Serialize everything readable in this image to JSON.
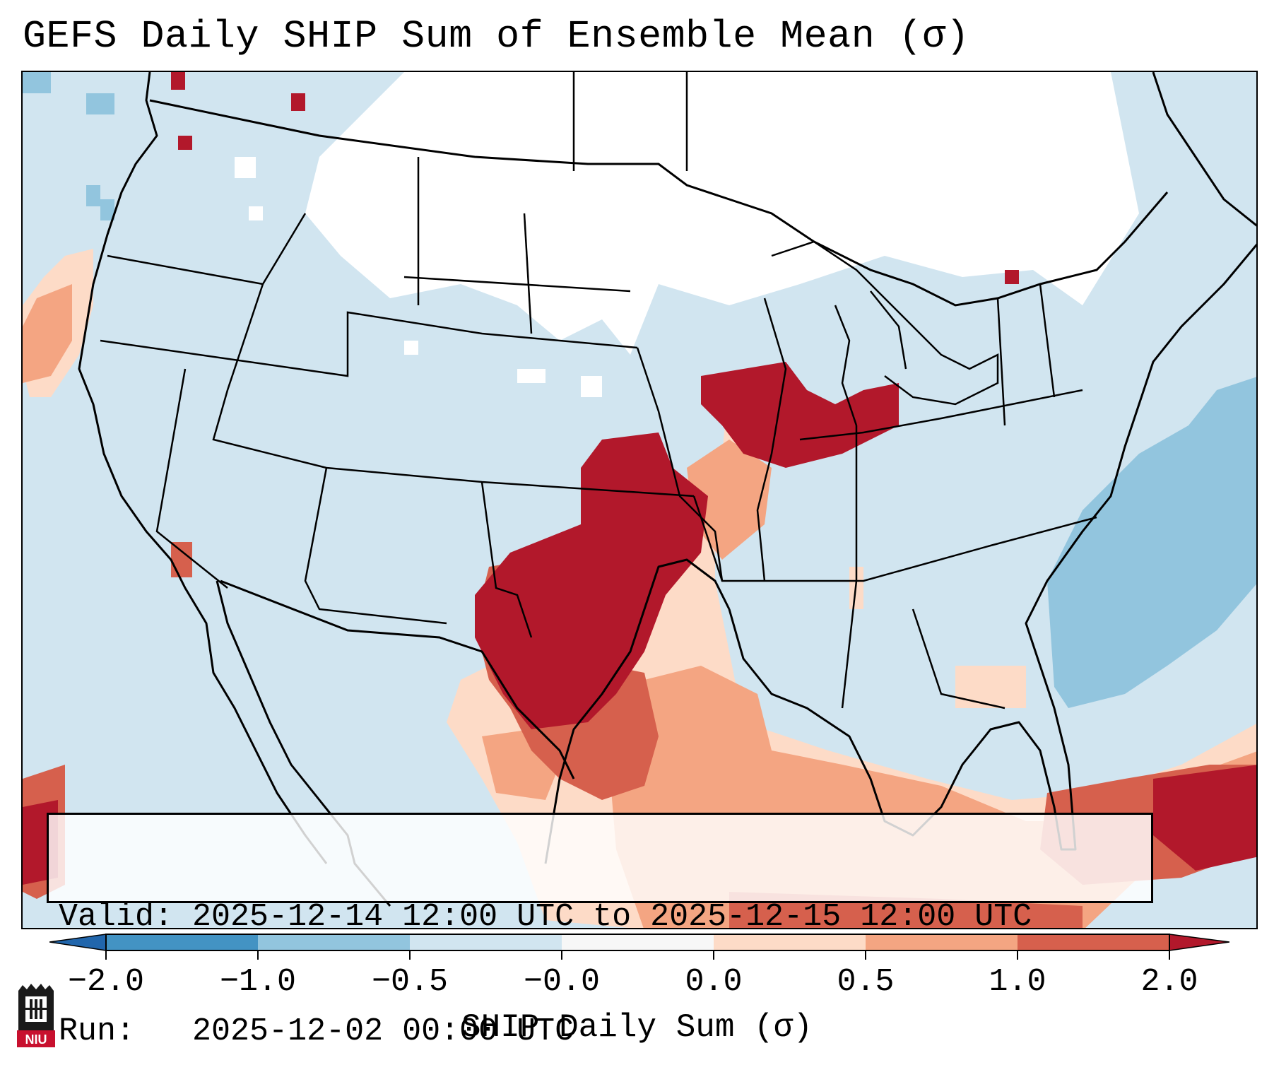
{
  "title": "GEFS Daily SHIP Sum of Ensemble Mean (σ)",
  "info": {
    "valid_label": "Valid:",
    "valid_value": "2025-12-14 12:00 UTC to 2025-12-15 12:00 UTC",
    "run_label": "Run:",
    "run_value": "2025-12-02 00:00 UTC"
  },
  "colorbar": {
    "label": "SHIP Daily Sum (σ)",
    "ticks": [
      "−2.0",
      "−1.0",
      "−0.5",
      "−0.0",
      "0.0",
      "0.5",
      "1.0",
      "2.0"
    ],
    "colors": [
      "#4393c3",
      "#92c5de",
      "#d1e5f0",
      "#f7f7f7",
      "#fddbc7",
      "#f4a582",
      "#d6604d",
      "#b2182b"
    ],
    "extend": "both"
  },
  "palette": {
    "background_field": "#d1e5f0",
    "near_zero": "#ffffff",
    "strong_negative": "#92c5de",
    "weak_positive": "#fddbc7",
    "moderate_positive": "#f4a582",
    "high_positive": "#d6604d",
    "very_high_positive": "#b2182b"
  },
  "map": {
    "projection": "Lambert Conformal",
    "region": "CONUS",
    "features": [
      "coastlines",
      "country-borders",
      "state-borders"
    ]
  },
  "logo": {
    "text": "NIU",
    "color": "#c8102e"
  }
}
